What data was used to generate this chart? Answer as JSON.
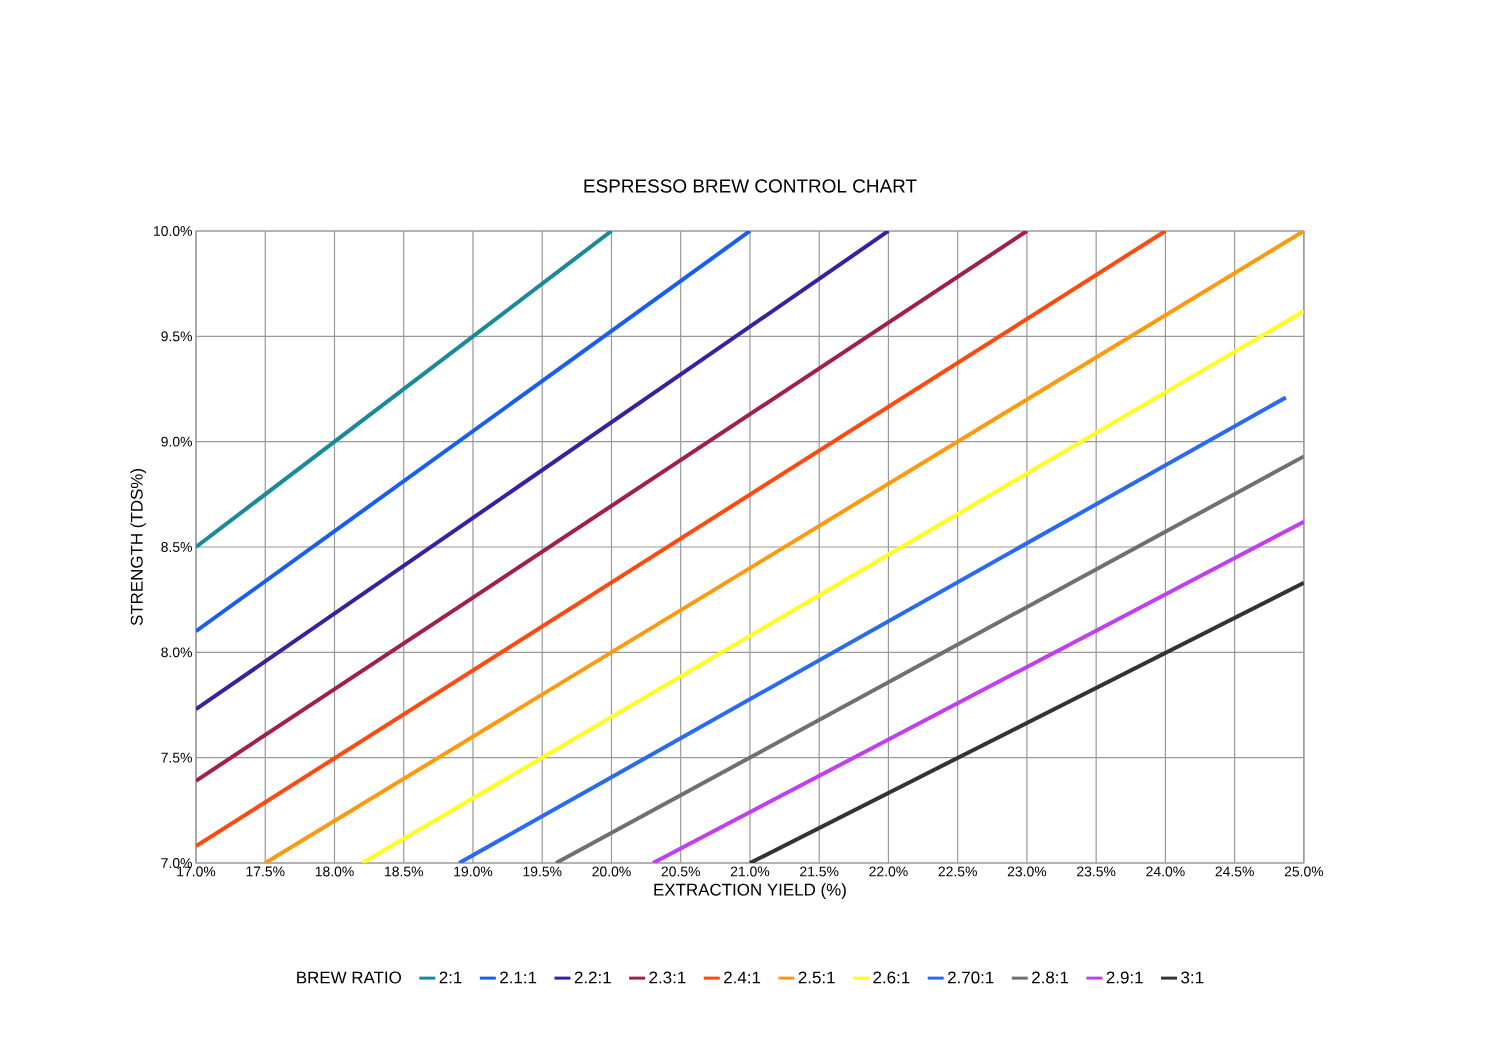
{
  "chart_data": {
    "type": "line",
    "title": "ESPRESSO BREW CONTROL CHART",
    "xlabel": "EXTRACTION YIELD (%)",
    "ylabel": "STRENGTH (TDS%)",
    "legend_title": "BREW RATIO",
    "xlim": [
      17,
      25
    ],
    "ylim": [
      7,
      10
    ],
    "xticks": [
      {
        "value": 17,
        "label": "17.0%"
      },
      {
        "value": 17.5,
        "label": "17.5%"
      },
      {
        "value": 18,
        "label": "18.0%"
      },
      {
        "value": 18.5,
        "label": "18.5%"
      },
      {
        "value": 19,
        "label": "19.0%"
      },
      {
        "value": 19.5,
        "label": "19.5%"
      },
      {
        "value": 20,
        "label": "20.0%"
      },
      {
        "value": 20.5,
        "label": "20.5%"
      },
      {
        "value": 21,
        "label": "21.0%"
      },
      {
        "value": 21.5,
        "label": "21.5%"
      },
      {
        "value": 22,
        "label": "22.0%"
      },
      {
        "value": 22.5,
        "label": "22.5%"
      },
      {
        "value": 23,
        "label": "23.0%"
      },
      {
        "value": 23.5,
        "label": "23.5%"
      },
      {
        "value": 24,
        "label": "24.0%"
      },
      {
        "value": 24.5,
        "label": "24.5%"
      },
      {
        "value": 25,
        "label": "25.0%"
      }
    ],
    "yticks": [
      {
        "value": 7,
        "label": "7.0%"
      },
      {
        "value": 7.5,
        "label": "7.5%"
      },
      {
        "value": 8,
        "label": "8.0%"
      },
      {
        "value": 8.5,
        "label": "8.5%"
      },
      {
        "value": 9,
        "label": "9.0%"
      },
      {
        "value": 9.5,
        "label": "9.5%"
      },
      {
        "value": 10,
        "label": "10.0%"
      }
    ],
    "grid": true,
    "legend": "bottom",
    "marker": "none",
    "line_style": "solid",
    "series": [
      {
        "name": "2:1",
        "color": "#1a8a9a",
        "x": [
          17,
          20
        ],
        "values": [
          8.5,
          10
        ]
      },
      {
        "name": "2.1:1",
        "color": "#1a5ef0",
        "x": [
          17,
          21
        ],
        "values": [
          8.1,
          10
        ]
      },
      {
        "name": "2.2:1",
        "color": "#3a1fa0",
        "x": [
          17,
          22
        ],
        "values": [
          7.73,
          10
        ]
      },
      {
        "name": "2.3:1",
        "color": "#a01f4f",
        "x": [
          17,
          23
        ],
        "values": [
          7.39,
          10
        ]
      },
      {
        "name": "2.4:1",
        "color": "#ff4a10",
        "x": [
          17,
          24
        ],
        "values": [
          7.08,
          10
        ]
      },
      {
        "name": "2.5:1",
        "color": "#ff9a10",
        "x": [
          17.5,
          25
        ],
        "values": [
          7,
          10
        ]
      },
      {
        "name": "2.6:1",
        "color": "#ffff20",
        "x": [
          18.2,
          25
        ],
        "values": [
          7,
          9.62
        ]
      },
      {
        "name": "2.70:1",
        "color": "#2a6af0",
        "x": [
          18.9,
          24.87
        ],
        "values": [
          7,
          9.21
        ]
      },
      {
        "name": "2.8:1",
        "color": "#707070",
        "x": [
          19.6,
          25
        ],
        "values": [
          7,
          8.93
        ]
      },
      {
        "name": "2.9:1",
        "color": "#c040f0",
        "x": [
          20.3,
          25
        ],
        "values": [
          7,
          8.62
        ]
      },
      {
        "name": "3:1",
        "color": "#333333",
        "x": [
          21,
          25
        ],
        "values": [
          7,
          8.33
        ]
      }
    ]
  }
}
